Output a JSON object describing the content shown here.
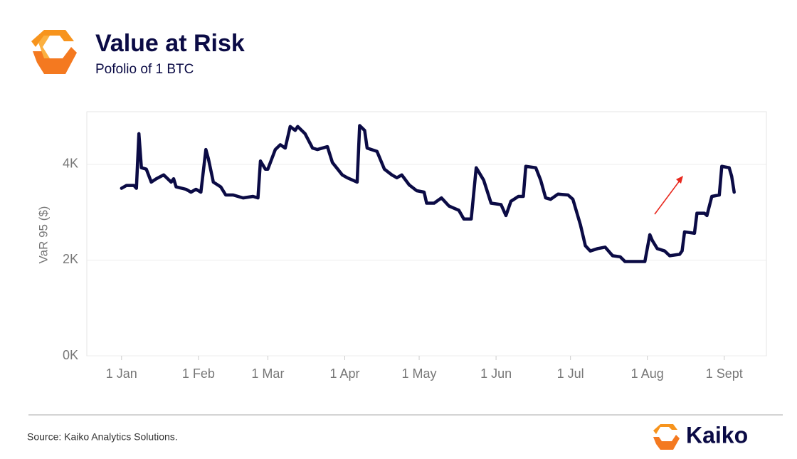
{
  "chart_data": {
    "type": "line",
    "title": "Value at Risk",
    "subtitle": "Pofolio of 1 BTC",
    "y_label": "VaR 95 ($)",
    "source": "Source: Kaiko Analytics Solutions.",
    "brand": "Kaiko",
    "color": "#0b0b45",
    "grid": true,
    "x": [
      0,
      2,
      5,
      6,
      7,
      8,
      10,
      12,
      14,
      17,
      20,
      21,
      22,
      26,
      28,
      30,
      32,
      34,
      35,
      37,
      40,
      42,
      45,
      49,
      53,
      55,
      56,
      58,
      59,
      62,
      64,
      66,
      68,
      70,
      71,
      74,
      77,
      79,
      83,
      85,
      89,
      91,
      95,
      96,
      98,
      99,
      103,
      106,
      109,
      111,
      113,
      116,
      119,
      122,
      123,
      126,
      129,
      132,
      136,
      138,
      141,
      143,
      146,
      149,
      153,
      155,
      157,
      160,
      162,
      163,
      167,
      169,
      171,
      173,
      176,
      180,
      182,
      185,
      187,
      189,
      192,
      195,
      198,
      201,
      203,
      207,
      211,
      213,
      214,
      216,
      219,
      221,
      225,
      226,
      227,
      231,
      232,
      235,
      236,
      238,
      241,
      242,
      245,
      246,
      247
    ],
    "values": [
      3500,
      3560,
      3560,
      3500,
      4640,
      3930,
      3900,
      3630,
      3700,
      3780,
      3630,
      3700,
      3530,
      3480,
      3420,
      3480,
      3420,
      4310,
      4120,
      3630,
      3530,
      3360,
      3360,
      3300,
      3330,
      3300,
      4070,
      3900,
      3900,
      4310,
      4410,
      4340,
      4790,
      4710,
      4790,
      4640,
      4340,
      4310,
      4370,
      4040,
      3780,
      3720,
      3630,
      4810,
      4710,
      4340,
      4270,
      3900,
      3780,
      3720,
      3780,
      3570,
      3450,
      3420,
      3190,
      3190,
      3300,
      3130,
      3040,
      2860,
      2860,
      3930,
      3670,
      3190,
      3160,
      2930,
      3230,
      3330,
      3330,
      3960,
      3930,
      3670,
      3300,
      3270,
      3380,
      3360,
      3270,
      2740,
      2300,
      2190,
      2240,
      2270,
      2090,
      2070,
      1970,
      1970,
      1970,
      2530,
      2410,
      2240,
      2190,
      2090,
      2120,
      2190,
      2590,
      2560,
      2980,
      2980,
      2930,
      3330,
      3360,
      3960,
      3930,
      3750,
      3420
    ],
    "xlim": [
      -14,
      260
    ],
    "xticks": [
      {
        "value": 0,
        "label": "1 Jan"
      },
      {
        "value": 31,
        "label": "1 Feb"
      },
      {
        "value": 59,
        "label": "1 Mar"
      },
      {
        "value": 90,
        "label": "1 Apr"
      },
      {
        "value": 120,
        "label": "1 May"
      },
      {
        "value": 151,
        "label": "1 Jun"
      },
      {
        "value": 181,
        "label": "1 Jul"
      },
      {
        "value": 212,
        "label": "1 Aug"
      },
      {
        "value": 243,
        "label": "1 Sept"
      }
    ],
    "ylim": [
      0,
      5100
    ],
    "yticks": [
      {
        "value": 0,
        "label": "0K"
      },
      {
        "value": 2000,
        "label": "2K"
      },
      {
        "value": 4000,
        "label": "4K"
      }
    ]
  }
}
